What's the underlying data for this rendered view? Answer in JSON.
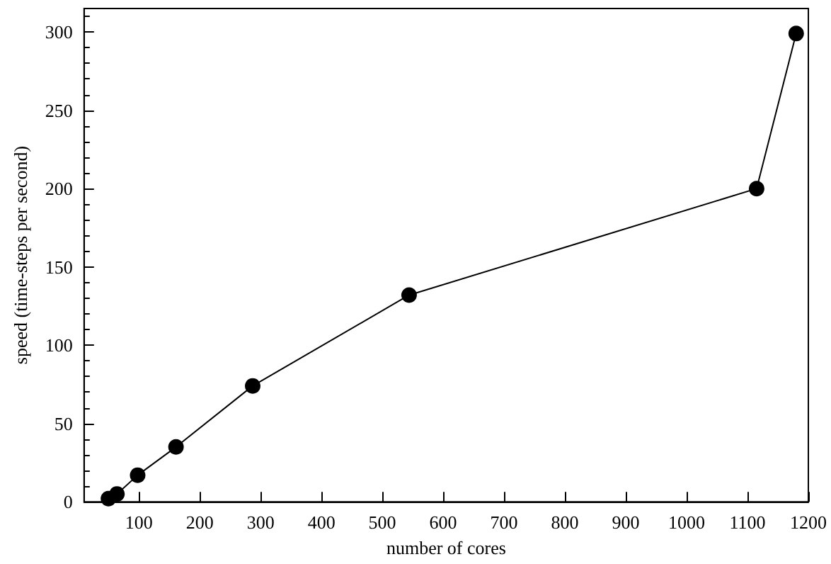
{
  "chart_data": {
    "type": "line",
    "xlabel": "number of cores",
    "ylabel": "speed (time-steps per second)",
    "x": [
      50,
      64,
      98,
      161,
      287,
      544,
      1115,
      1180
    ],
    "series": [
      {
        "color": "#000000",
        "values": [
          2,
          5,
          17,
          35,
          74,
          132,
          200,
          299
        ]
      }
    ],
    "xlim": [
      10,
      1200
    ],
    "xticks": [
      100,
      200,
      300,
      400,
      500,
      600,
      700,
      800,
      900,
      1000,
      1100,
      1200
    ],
    "ylim": [
      0,
      315
    ],
    "yticks": [
      0,
      50,
      100,
      150,
      200,
      250,
      300
    ],
    "marker": "circle",
    "line_style": "solid"
  }
}
